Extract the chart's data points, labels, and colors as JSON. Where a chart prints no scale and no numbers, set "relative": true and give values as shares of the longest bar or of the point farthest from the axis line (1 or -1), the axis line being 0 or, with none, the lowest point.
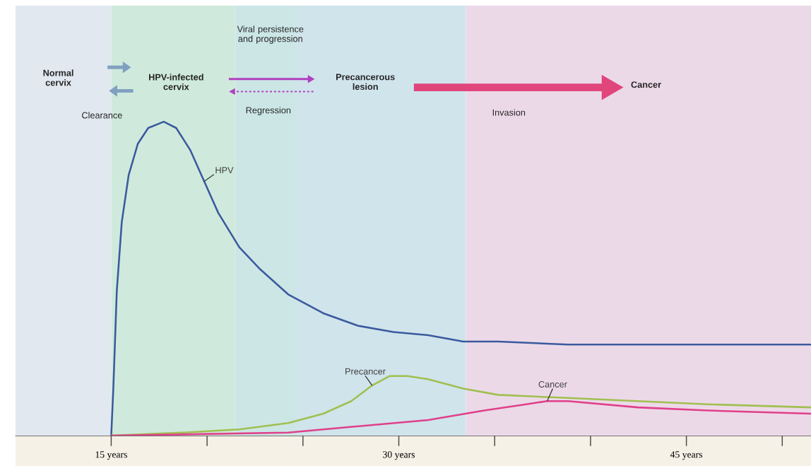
{
  "chart_data": {
    "type": "line",
    "relative": true,
    "xlim": [
      10,
      51.5
    ],
    "xticks": [
      {
        "value": 15,
        "label": "15 years"
      },
      {
        "value": 20,
        "label": null
      },
      {
        "value": 25,
        "label": null
      },
      {
        "value": 30,
        "label": "30 years"
      },
      {
        "value": 35,
        "label": null
      },
      {
        "value": 40,
        "label": null
      },
      {
        "value": 45,
        "label": "45 years"
      },
      {
        "value": 50,
        "label": null
      }
    ],
    "series": [
      {
        "name": "HPV",
        "color": "#3a5a9e",
        "x": [
          15,
          15.11,
          15.29,
          15.55,
          15.91,
          16.39,
          16.93,
          17.74,
          18.39,
          19.12,
          19.85,
          20.58,
          21.68,
          22.77,
          24.23,
          26.06,
          27.88,
          29.71,
          31.53,
          33.36,
          35.18,
          38.83,
          42.48,
          46.13,
          51.5
        ],
        "values": [
          0,
          0.15,
          0.46,
          0.68,
          0.83,
          0.93,
          0.98,
          1,
          0.98,
          0.91,
          0.81,
          0.71,
          0.6,
          0.53,
          0.45,
          0.39,
          0.35,
          0.33,
          0.32,
          0.3,
          0.3,
          0.29,
          0.29,
          0.29,
          0.29
        ]
      },
      {
        "name": "Precancer",
        "color": "#a0c050",
        "x": [
          15,
          18.76,
          21.68,
          24.23,
          26.06,
          27.52,
          28.61,
          29.53,
          30.44,
          31.53,
          33.36,
          35.18,
          38.83,
          42.48,
          46.13,
          51.5
        ],
        "values": [
          0,
          0.01,
          0.02,
          0.04,
          0.07,
          0.11,
          0.16,
          0.19,
          0.19,
          0.18,
          0.15,
          0.13,
          0.12,
          0.11,
          0.1,
          0.09
        ]
      },
      {
        "name": "Cancer",
        "color": "#e0408a",
        "x": [
          15,
          24.23,
          27.88,
          31.53,
          34.45,
          36.64,
          37.74,
          38.83,
          42.48,
          46.13,
          51.5
        ],
        "values": [
          0,
          0.01,
          0.03,
          0.05,
          0.08,
          0.1,
          0.11,
          0.11,
          0.09,
          0.08,
          0.07
        ]
      }
    ],
    "bands": [
      {
        "axis": "x",
        "from": 10,
        "to": 15,
        "color": "#e1e8f0"
      },
      {
        "axis": "x",
        "from": 15,
        "to": 21.5,
        "color": "#cfeadc"
      },
      {
        "axis": "x",
        "from": 21.5,
        "to": 24.6,
        "color": "#cce6e6"
      },
      {
        "axis": "x",
        "from": 24.6,
        "to": 33.5,
        "color": "#d0e4ec"
      },
      {
        "axis": "x",
        "from": 33.5,
        "to": 51.5,
        "color": "#ecd9e8"
      }
    ],
    "annotations": [
      "Normal cervix",
      "HPV-infected cervix",
      "Viral persistence and progression",
      "Precancerous lesion",
      "Cancer",
      "Clearance",
      "Regression",
      "Invasion"
    ]
  }
}
